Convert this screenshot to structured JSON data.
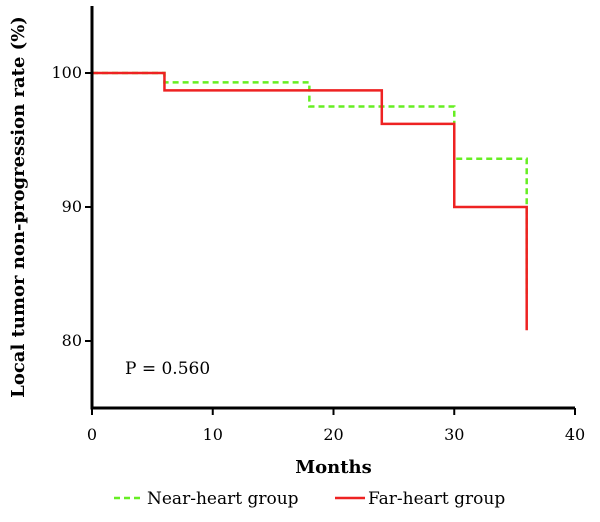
{
  "chart_data": {
    "type": "line",
    "step": true,
    "xlabel": "Months",
    "ylabel": "Local tumor non-progression rate (%)",
    "xlim": [
      0,
      40
    ],
    "ylim": [
      75,
      105
    ],
    "xticks": [
      0,
      10,
      20,
      30,
      40
    ],
    "yticks": [
      80,
      90,
      100
    ],
    "grid": false,
    "legend_position": "bottom",
    "annotation": "P = 0.560",
    "series": [
      {
        "name": "Near-heart group",
        "color": "#66ee22",
        "line_style": "dashed",
        "x": [
          0,
          6,
          18,
          30,
          36,
          36
        ],
        "y": [
          100,
          99.3,
          97.5,
          93.6,
          83.5,
          83.5
        ]
      },
      {
        "name": "Far-heart group",
        "color": "#ee2222",
        "line_style": "solid",
        "x": [
          0,
          6,
          24,
          30,
          36,
          36
        ],
        "y": [
          100,
          98.7,
          96.2,
          90,
          80.8,
          80.8
        ]
      }
    ]
  }
}
